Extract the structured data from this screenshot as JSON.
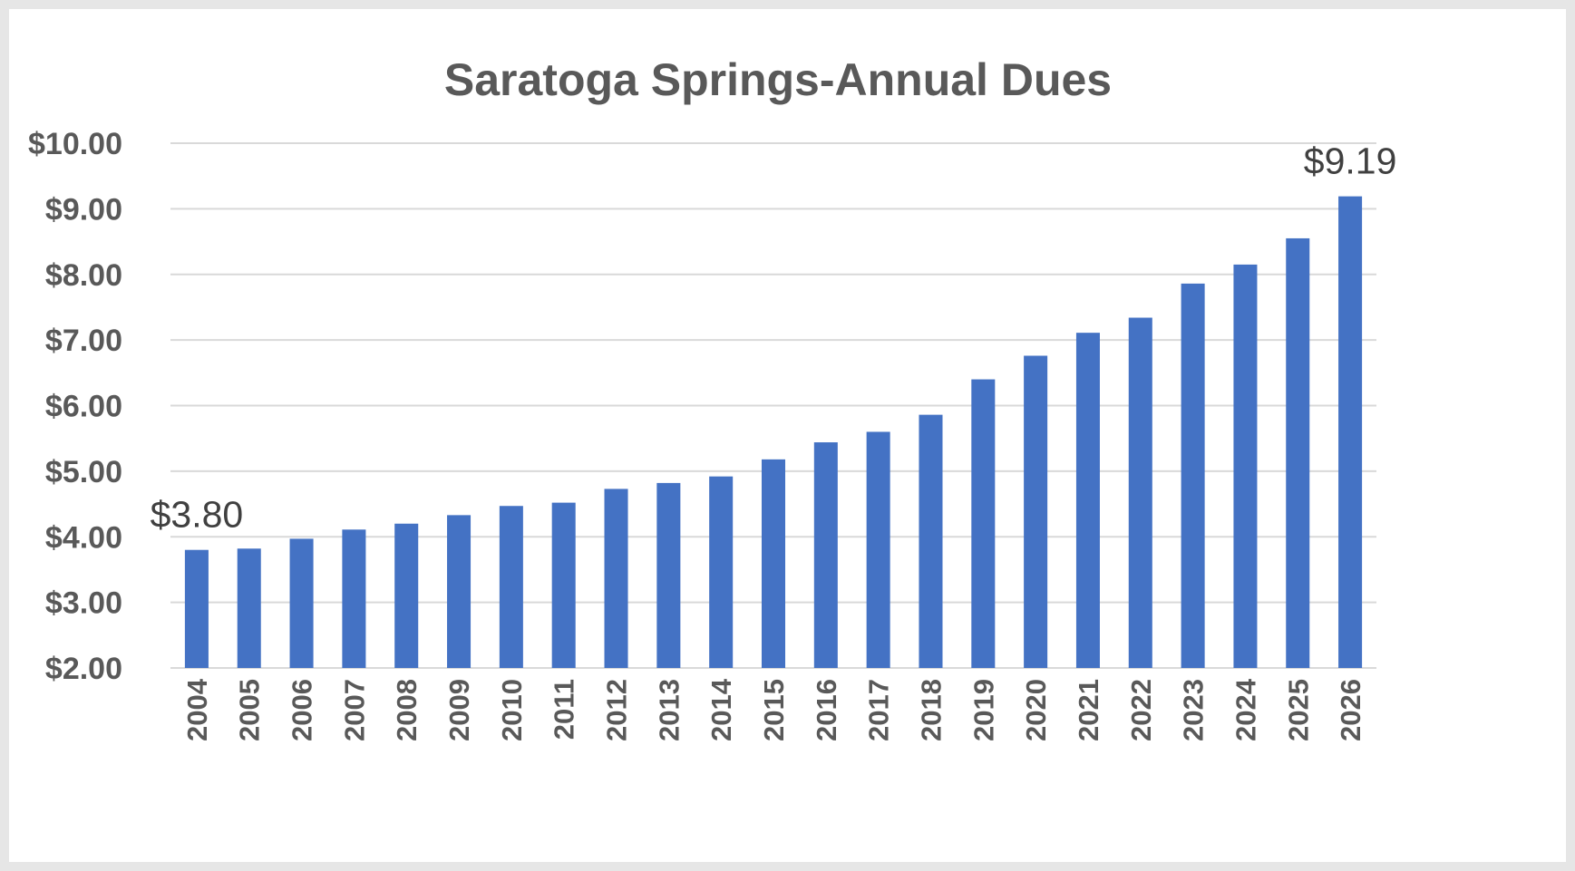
{
  "chart_data": {
    "type": "bar",
    "title": "Saratoga Springs-Annual Dues",
    "xlabel": "",
    "ylabel": "",
    "ylim": [
      2,
      10
    ],
    "grid": true,
    "legend": "none",
    "color": "#4472c4",
    "yticks": [
      "$2.00",
      "$3.00",
      "$4.00",
      "$5.00",
      "$6.00",
      "$7.00",
      "$8.00",
      "$9.00",
      "$10.00"
    ],
    "categories": [
      "2004",
      "2005",
      "2006",
      "2007",
      "2008",
      "2009",
      "2010",
      "2011",
      "2012",
      "2013",
      "2014",
      "2015",
      "2016",
      "2017",
      "2018",
      "2019",
      "2020",
      "2021",
      "2022",
      "2023",
      "2024",
      "2025",
      "2026"
    ],
    "values": [
      3.8,
      3.82,
      3.97,
      4.11,
      4.2,
      4.33,
      4.47,
      4.52,
      4.73,
      4.82,
      4.92,
      5.18,
      5.44,
      5.6,
      5.86,
      6.4,
      6.76,
      7.11,
      7.34,
      7.86,
      8.15,
      8.55,
      9.19
    ],
    "data_labels": [
      {
        "category": "2004",
        "text": "$3.80"
      },
      {
        "category": "2026",
        "text": "$9.19"
      }
    ]
  }
}
